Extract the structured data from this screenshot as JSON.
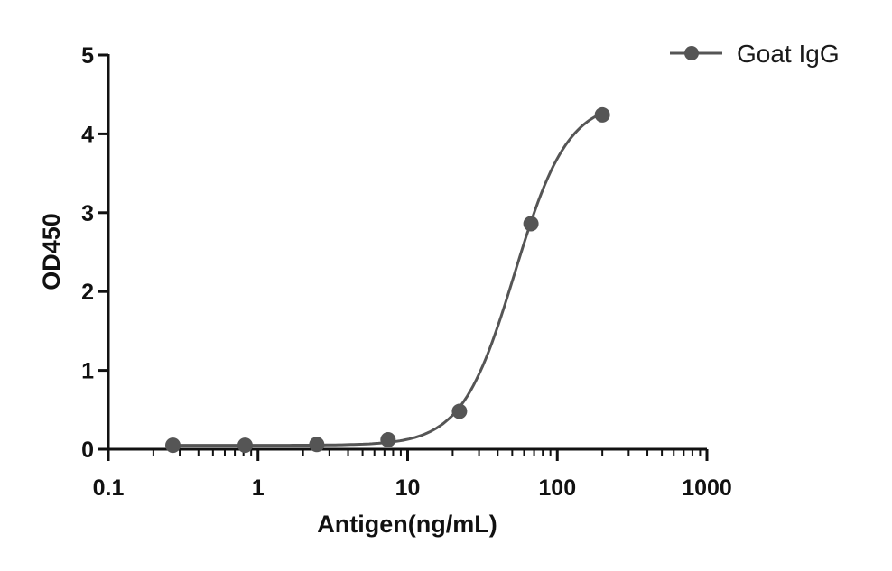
{
  "chart_data": {
    "type": "scatter",
    "title": "",
    "xlabel": "Antigen(ng/mL)",
    "ylabel": "OD450",
    "xscale": "log",
    "xlim": [
      0.1,
      1000
    ],
    "ylim": [
      0,
      5
    ],
    "xticks": [
      0.1,
      1,
      10,
      100,
      1000
    ],
    "xtick_labels": [
      "0.1",
      "1",
      "10",
      "100",
      "1000"
    ],
    "yticks": [
      0,
      1,
      2,
      3,
      4,
      5
    ],
    "ytick_labels": [
      "0",
      "1",
      "2",
      "3",
      "4",
      "5"
    ],
    "grid": false,
    "legend_position": "top-right",
    "series": [
      {
        "name": "Goat IgG",
        "color": "#555555",
        "marker": "circle",
        "x": [
          0.27,
          0.82,
          2.47,
          7.4,
          22.2,
          66.7,
          200
        ],
        "y": [
          0.05,
          0.05,
          0.06,
          0.12,
          0.48,
          2.86,
          4.24
        ],
        "fit": "four-parameter logistic"
      }
    ]
  }
}
